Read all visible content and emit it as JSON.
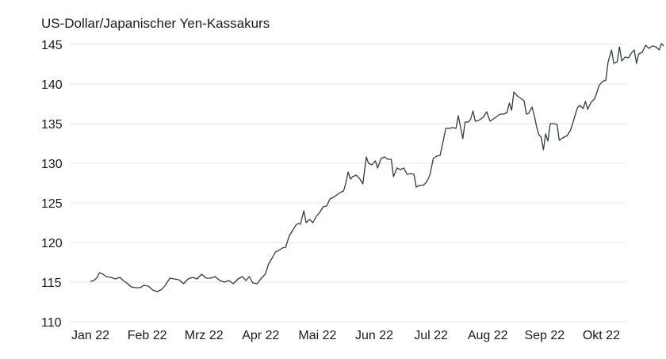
{
  "chart_data": {
    "type": "line",
    "title": "US-Dollar/Japanischer Yen-Kassakurs",
    "xlabel": "",
    "ylabel": "",
    "ylim": [
      110,
      145
    ],
    "yticks": [
      "110",
      "115",
      "120",
      "125",
      "130",
      "135",
      "140",
      "145"
    ],
    "xticks": [
      "Jan 22",
      "Feb 22",
      "Mrz 22",
      "Apr 22",
      "Mai 22",
      "Jun 22",
      "Jul 22",
      "Aug 22",
      "Sep 22",
      "Okt 22"
    ],
    "grid": true,
    "line_color": "#2f3e3e",
    "grid_color": "#e6e6e6",
    "series": [
      {
        "values": [
          [
            0.0,
            115.1
          ],
          [
            0.06,
            115.2
          ],
          [
            0.12,
            115.6
          ],
          [
            0.16,
            116.2
          ],
          [
            0.22,
            116.0
          ],
          [
            0.28,
            115.7
          ],
          [
            0.36,
            115.6
          ],
          [
            0.44,
            115.4
          ],
          [
            0.52,
            115.6
          ],
          [
            0.58,
            115.2
          ],
          [
            0.64,
            114.9
          ],
          [
            0.72,
            114.4
          ],
          [
            0.8,
            114.3
          ],
          [
            0.88,
            114.3
          ],
          [
            0.94,
            114.6
          ],
          [
            1.02,
            114.5
          ],
          [
            1.1,
            114.0
          ],
          [
            1.18,
            113.8
          ],
          [
            1.26,
            114.1
          ],
          [
            1.32,
            114.6
          ],
          [
            1.4,
            115.5
          ],
          [
            1.48,
            115.4
          ],
          [
            1.56,
            115.3
          ],
          [
            1.64,
            114.8
          ],
          [
            1.72,
            115.4
          ],
          [
            1.8,
            115.6
          ],
          [
            1.88,
            115.4
          ],
          [
            1.96,
            116.0
          ],
          [
            2.04,
            115.5
          ],
          [
            2.12,
            115.5
          ],
          [
            2.2,
            115.7
          ],
          [
            2.28,
            115.2
          ],
          [
            2.36,
            115.0
          ],
          [
            2.44,
            115.2
          ],
          [
            2.52,
            114.8
          ],
          [
            2.6,
            115.4
          ],
          [
            2.68,
            115.7
          ],
          [
            2.74,
            115.2
          ],
          [
            2.8,
            115.7
          ],
          [
            2.86,
            114.9
          ],
          [
            2.94,
            114.8
          ],
          [
            3.0,
            115.4
          ],
          [
            3.08,
            116.0
          ],
          [
            3.14,
            117.3
          ],
          [
            3.2,
            118.0
          ],
          [
            3.26,
            118.8
          ],
          [
            3.32,
            119.0
          ],
          [
            3.38,
            119.3
          ],
          [
            3.44,
            119.4
          ],
          [
            3.5,
            120.8
          ],
          [
            3.56,
            121.5
          ],
          [
            3.62,
            122.2
          ],
          [
            3.66,
            122.4
          ],
          [
            3.7,
            122.3
          ],
          [
            3.76,
            124.0
          ],
          [
            3.8,
            122.5
          ],
          [
            3.86,
            122.9
          ],
          [
            3.92,
            122.5
          ],
          [
            3.98,
            123.3
          ],
          [
            4.04,
            123.8
          ],
          [
            4.1,
            124.5
          ],
          [
            4.16,
            124.6
          ],
          [
            4.22,
            125.5
          ],
          [
            4.28,
            125.7
          ],
          [
            4.34,
            126.0
          ],
          [
            4.4,
            126.3
          ],
          [
            4.46,
            126.5
          ],
          [
            4.5,
            127.5
          ],
          [
            4.54,
            128.9
          ],
          [
            4.58,
            128.0
          ],
          [
            4.62,
            128.3
          ],
          [
            4.68,
            128.5
          ],
          [
            4.74,
            128.1
          ],
          [
            4.8,
            127.4
          ],
          [
            4.86,
            130.8
          ],
          [
            4.9,
            130.0
          ],
          [
            4.96,
            129.8
          ],
          [
            5.02,
            130.3
          ],
          [
            5.06,
            129.4
          ],
          [
            5.12,
            130.6
          ],
          [
            5.18,
            130.8
          ],
          [
            5.24,
            130.5
          ],
          [
            5.3,
            130.5
          ],
          [
            5.34,
            128.3
          ],
          [
            5.4,
            129.4
          ],
          [
            5.46,
            129.2
          ],
          [
            5.52,
            129.4
          ],
          [
            5.58,
            128.6
          ],
          [
            5.64,
            128.7
          ],
          [
            5.7,
            128.6
          ],
          [
            5.74,
            127.0
          ],
          [
            5.8,
            127.2
          ],
          [
            5.86,
            127.2
          ],
          [
            5.92,
            127.6
          ],
          [
            5.98,
            128.5
          ],
          [
            6.04,
            130.6
          ],
          [
            6.1,
            130.9
          ],
          [
            6.16,
            131.0
          ],
          [
            6.22,
            133.0
          ],
          [
            6.26,
            134.4
          ],
          [
            6.32,
            134.4
          ],
          [
            6.38,
            134.5
          ],
          [
            6.44,
            134.4
          ],
          [
            6.48,
            136.0
          ],
          [
            6.52,
            134.6
          ],
          [
            6.56,
            133.1
          ],
          [
            6.6,
            135.2
          ],
          [
            6.66,
            135.2
          ],
          [
            6.7,
            135.6
          ],
          [
            6.74,
            136.6
          ],
          [
            6.78,
            135.3
          ],
          [
            6.84,
            135.4
          ],
          [
            6.88,
            135.6
          ],
          [
            6.92,
            135.8
          ],
          [
            6.98,
            136.5
          ],
          [
            7.04,
            135.3
          ],
          [
            7.1,
            135.6
          ],
          [
            7.16,
            135.9
          ],
          [
            7.22,
            136.2
          ],
          [
            7.28,
            136.2
          ],
          [
            7.34,
            136.4
          ],
          [
            7.38,
            137.6
          ],
          [
            7.42,
            136.7
          ],
          [
            7.46,
            139.0
          ],
          [
            7.52,
            138.5
          ],
          [
            7.58,
            138.2
          ],
          [
            7.64,
            137.9
          ],
          [
            7.68,
            136.2
          ],
          [
            7.72,
            136.3
          ],
          [
            7.78,
            137.1
          ],
          [
            7.82,
            136.0
          ],
          [
            7.86,
            134.6
          ],
          [
            7.9,
            133.6
          ],
          [
            7.94,
            133.3
          ],
          [
            7.98,
            131.7
          ],
          [
            8.02,
            133.7
          ],
          [
            8.06,
            132.8
          ],
          [
            8.1,
            135.0
          ],
          [
            8.16,
            135.0
          ],
          [
            8.22,
            134.9
          ],
          [
            8.26,
            132.9
          ],
          [
            8.32,
            133.2
          ],
          [
            8.4,
            133.5
          ],
          [
            8.46,
            134.2
          ],
          [
            8.52,
            135.6
          ],
          [
            8.58,
            137.0
          ],
          [
            8.62,
            137.3
          ],
          [
            8.68,
            136.9
          ],
          [
            8.72,
            137.8
          ],
          [
            8.76,
            136.8
          ],
          [
            8.82,
            137.7
          ],
          [
            8.88,
            138.1
          ],
          [
            8.92,
            138.9
          ],
          [
            8.96,
            139.8
          ],
          [
            9.02,
            140.3
          ],
          [
            9.08,
            140.5
          ],
          [
            9.12,
            142.8
          ],
          [
            9.18,
            144.3
          ],
          [
            9.22,
            142.6
          ],
          [
            9.28,
            142.8
          ],
          [
            9.32,
            144.7
          ],
          [
            9.36,
            142.9
          ],
          [
            9.42,
            143.4
          ],
          [
            9.48,
            143.3
          ],
          [
            9.52,
            143.8
          ],
          [
            9.58,
            144.3
          ],
          [
            9.62,
            142.6
          ],
          [
            9.66,
            143.8
          ],
          [
            9.72,
            144.0
          ],
          [
            9.78,
            144.9
          ],
          [
            9.84,
            144.5
          ],
          [
            9.9,
            144.8
          ],
          [
            9.96,
            144.7
          ],
          [
            10.02,
            144.3
          ],
          [
            10.06,
            145.1
          ],
          [
            10.1,
            144.8
          ]
        ]
      }
    ]
  }
}
